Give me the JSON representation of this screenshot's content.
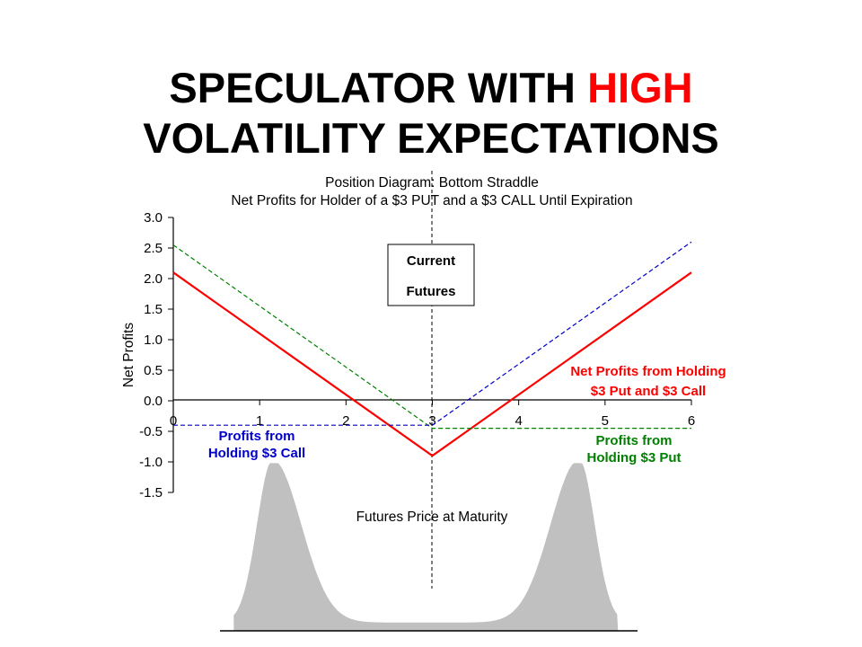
{
  "slide": {
    "title_part1": "SPECULATOR WITH ",
    "title_highlight": "HIGH",
    "title_part2": "VOLATILITY EXPECTATIONS",
    "highlight_color": "#ff0000"
  },
  "chart_data": {
    "type": "line",
    "title": "Position Diagram:  Bottom Straddle",
    "subtitle": "Net Profits for Holder of a $3 PUT and a $3 CALL Until Expiration",
    "xlabel": "Futures Price at Maturity",
    "ylabel": "Net Profits",
    "xlim": [
      0,
      6
    ],
    "ylim": [
      -1.5,
      3.0
    ],
    "x_ticks": [
      "0",
      "1",
      "2",
      "3",
      "4",
      "5",
      "6"
    ],
    "y_ticks": [
      "3.0",
      "2.5",
      "2.0",
      "1.5",
      "1.0",
      "0.5",
      "0.0",
      "-0.5",
      "-1.0",
      "-1.5"
    ],
    "grid": false,
    "series": [
      {
        "name": "Net Profits from Holding $3 Put and $3 Call",
        "label_lines": [
          "Net Profits from Holding",
          "$3 Put and $3 Call"
        ],
        "color": "#ff0000",
        "style": "solid",
        "points": [
          [
            0,
            2.1
          ],
          [
            3,
            -0.9
          ],
          [
            6,
            2.1
          ]
        ]
      },
      {
        "name": "Profits from Holding $3 Put",
        "label_lines": [
          "Profits from",
          "Holding $3 Put"
        ],
        "color": "#008000",
        "style": "dashed",
        "points": [
          [
            0,
            2.55
          ],
          [
            3,
            -0.45
          ],
          [
            6,
            -0.45
          ]
        ]
      },
      {
        "name": "Profits from Holding $3 Call",
        "label_lines": [
          "Profits from",
          "Holding $3 Call"
        ],
        "color": "#0000cc",
        "style": "dashed",
        "points": [
          [
            0,
            -0.4
          ],
          [
            3,
            -0.4
          ],
          [
            6,
            2.6
          ]
        ]
      }
    ],
    "annotations": {
      "current_futures": {
        "x": 3,
        "label_lines": [
          "Current",
          "Futures"
        ]
      }
    },
    "distribution": {
      "type": "area",
      "shape": "bimodal",
      "color": "#c0c0c0",
      "peaks_x": [
        1.15,
        4.7
      ]
    }
  }
}
